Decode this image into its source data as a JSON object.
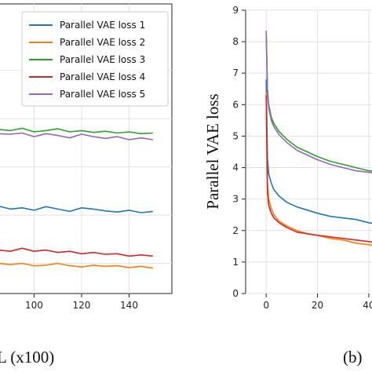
{
  "chart_data": [
    {
      "type": "line",
      "panel": "a",
      "xlabel_fragment": "(x100)",
      "x_ticks": [
        "100",
        "120",
        "140"
      ],
      "x_range_visible": [
        85,
        158
      ],
      "series": [
        {
          "name": "Parallel VAE loss 1",
          "color": "#1f77b4",
          "x": [
            85,
            90,
            95,
            100,
            105,
            110,
            115,
            120,
            125,
            130,
            135,
            140,
            145,
            150
          ],
          "values": [
            2.45,
            2.4,
            2.42,
            2.38,
            2.44,
            2.4,
            2.36,
            2.42,
            2.4,
            2.37,
            2.35,
            2.38,
            2.34,
            2.36
          ]
        },
        {
          "name": "Parallel VAE loss 2",
          "color": "#ff7f0e",
          "x": [
            85,
            90,
            95,
            100,
            105,
            110,
            115,
            120,
            125,
            130,
            135,
            140,
            145,
            150
          ],
          "values": [
            1.5,
            1.48,
            1.5,
            1.46,
            1.47,
            1.5,
            1.46,
            1.44,
            1.47,
            1.45,
            1.46,
            1.43,
            1.45,
            1.42
          ]
        },
        {
          "name": "Parallel VAE loss 3",
          "color": "#2ca02c",
          "x": [
            85,
            90,
            95,
            100,
            105,
            110,
            115,
            120,
            125,
            130,
            135,
            140,
            145,
            150
          ],
          "values": [
            3.72,
            3.7,
            3.74,
            3.68,
            3.7,
            3.73,
            3.68,
            3.7,
            3.67,
            3.69,
            3.66,
            3.68,
            3.65,
            3.66
          ]
        },
        {
          "name": "Parallel VAE loss 4",
          "color": "#d62728",
          "x": [
            85,
            90,
            95,
            100,
            105,
            110,
            115,
            120,
            125,
            130,
            135,
            140,
            145,
            150
          ],
          "values": [
            1.72,
            1.7,
            1.75,
            1.7,
            1.72,
            1.68,
            1.7,
            1.66,
            1.68,
            1.65,
            1.66,
            1.62,
            1.64,
            1.62
          ]
        },
        {
          "name": "Parallel VAE loss 5",
          "color": "#9467bd",
          "x": [
            85,
            90,
            95,
            100,
            105,
            110,
            115,
            120,
            125,
            130,
            135,
            140,
            145,
            150
          ],
          "values": [
            3.65,
            3.64,
            3.66,
            3.6,
            3.65,
            3.62,
            3.58,
            3.64,
            3.6,
            3.57,
            3.6,
            3.55,
            3.58,
            3.55
          ]
        }
      ]
    },
    {
      "type": "line",
      "panel": "b",
      "ylabel": "Parallel VAE loss",
      "x_ticks": [
        "0",
        "20",
        "40"
      ],
      "y_ticks": [
        "0",
        "1",
        "2",
        "3",
        "4",
        "5",
        "6",
        "7",
        "8",
        "9"
      ],
      "ylim": [
        0,
        9
      ],
      "x_range_visible": [
        -8,
        44
      ],
      "series": [
        {
          "name": "Parallel VAE loss 1",
          "color": "#1f77b4",
          "x": [
            0,
            0.5,
            1,
            2,
            3,
            5,
            8,
            12,
            16,
            20,
            25,
            30,
            35,
            40,
            44
          ],
          "values": [
            6.8,
            4.3,
            3.8,
            3.5,
            3.3,
            3.1,
            2.9,
            2.75,
            2.65,
            2.55,
            2.45,
            2.4,
            2.35,
            2.25,
            2.2
          ]
        },
        {
          "name": "Parallel VAE loss 2",
          "color": "#ff7f0e",
          "x": [
            0,
            0.5,
            1,
            2,
            3,
            5,
            8,
            12,
            16,
            20,
            25,
            30,
            35,
            40,
            44
          ],
          "values": [
            6.4,
            3.5,
            3.0,
            2.7,
            2.5,
            2.3,
            2.15,
            2.0,
            1.9,
            1.85,
            1.75,
            1.7,
            1.6,
            1.55,
            1.5
          ]
        },
        {
          "name": "Parallel VAE loss 3",
          "color": "#2ca02c",
          "x": [
            0,
            0.5,
            1,
            2,
            3,
            5,
            8,
            12,
            16,
            20,
            25,
            30,
            35,
            40,
            44
          ],
          "values": [
            8.3,
            6.5,
            6.0,
            5.6,
            5.4,
            5.15,
            4.9,
            4.65,
            4.5,
            4.35,
            4.2,
            4.1,
            4.0,
            3.9,
            3.85
          ]
        },
        {
          "name": "Parallel VAE loss 4",
          "color": "#d62728",
          "x": [
            0,
            0.5,
            1,
            2,
            3,
            5,
            8,
            12,
            16,
            20,
            25,
            30,
            35,
            40,
            44
          ],
          "values": [
            6.3,
            3.2,
            2.8,
            2.55,
            2.4,
            2.25,
            2.1,
            1.95,
            1.9,
            1.85,
            1.8,
            1.75,
            1.7,
            1.65,
            1.6
          ]
        },
        {
          "name": "Parallel VAE loss 5",
          "color": "#9467bd",
          "x": [
            0,
            0.5,
            1,
            2,
            3,
            5,
            8,
            12,
            16,
            20,
            25,
            30,
            35,
            40,
            44
          ],
          "values": [
            8.35,
            6.4,
            5.9,
            5.5,
            5.3,
            5.05,
            4.8,
            4.55,
            4.4,
            4.25,
            4.1,
            4.0,
            3.9,
            3.85,
            3.8
          ]
        }
      ]
    }
  ],
  "captions": {
    "a_fragment": "L (x100)",
    "b_label": "(b)"
  }
}
